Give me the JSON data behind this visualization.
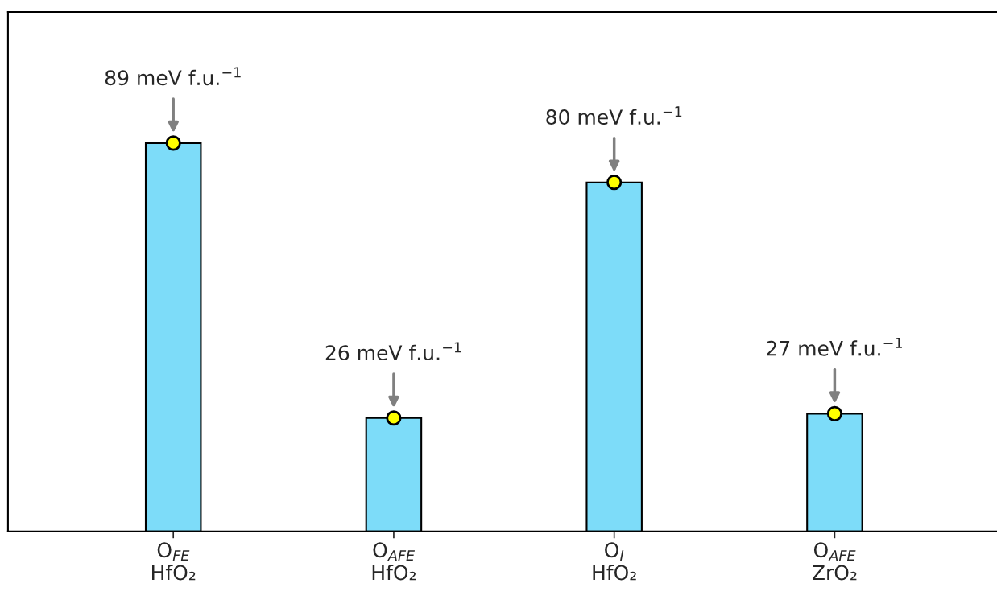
{
  "chart_data": {
    "type": "bar",
    "categories": [
      "O$_{FE}$\nHfO₂",
      "O$_{AFE}$\nHfO₂",
      "O$_{I}$\nHfO₂",
      "O$_{AFE}$\nZrO₂"
    ],
    "series": [
      {
        "color": "#7ddcf9",
        "values": [
          89,
          26,
          80,
          27
        ],
        "value_labels": [
          "89 meV f.u.$^{−1}$",
          "26 meV f.u.$^{−1}$",
          "80 meV f.u.$^{−1}$",
          "27 meV f.u.$^{−1}$"
        ]
      },
      {
        "type": "scatter",
        "color": "#ffff00",
        "values": [
          89,
          26,
          80,
          27
        ],
        "marker": "circle"
      }
    ],
    "ylim": [
      0,
      119
    ],
    "tick_labels": "x",
    "grid": false,
    "legend": false
  }
}
